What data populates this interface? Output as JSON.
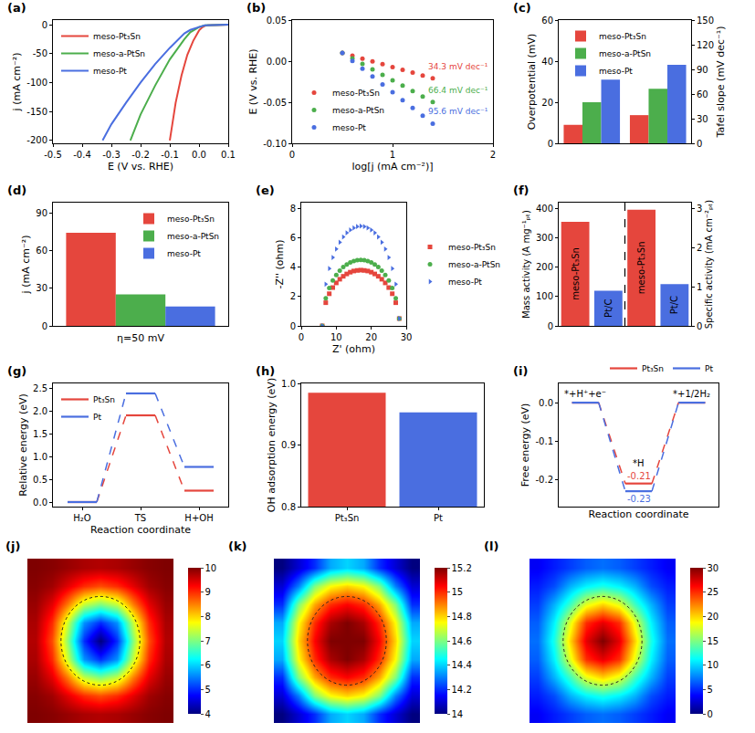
{
  "chart_data": [
    {
      "label": "(a)",
      "type": "line",
      "x_label": "E (V vs. RHE)",
      "y_label": "j (mA cm⁻²)",
      "xlim": [
        -0.5,
        0.1
      ],
      "xticks": [
        -0.5,
        -0.4,
        -0.3,
        -0.2,
        -0.1,
        {
          "value": 0,
          "label": "0.0"
        },
        0.1
      ],
      "ylim": [
        -205,
        8
      ],
      "yticks": [
        -200,
        -150,
        -100,
        -50,
        0
      ],
      "legend": "upper left",
      "series": [
        {
          "name": "meso-Pt₃Sn",
          "color": "#e5463d",
          "x": [
            0.1,
            0.05,
            0.03,
            0.02,
            0.01,
            0,
            -0.02,
            -0.04,
            -0.06,
            -0.08,
            -0.09,
            -0.1
          ],
          "values": [
            0,
            -0.3,
            -1,
            -2,
            -5,
            -10,
            -28,
            -52,
            -88,
            -135,
            -165,
            -200
          ]
        },
        {
          "name": "meso-a-PtSn",
          "color": "#4cae4c",
          "x": [
            0.1,
            0.05,
            0.02,
            0,
            -0.03,
            -0.05,
            -0.08,
            -0.1,
            -0.15,
            -0.2,
            -0.235
          ],
          "values": [
            0,
            -0.2,
            -1,
            -4,
            -13,
            -25,
            -45,
            -60,
            -105,
            -155,
            -200
          ]
        },
        {
          "name": "meso-Pt",
          "color": "#4a6ee0",
          "x": [
            0.1,
            0.05,
            0.02,
            0,
            -0.03,
            -0.05,
            -0.1,
            -0.15,
            -0.2,
            -0.25,
            -0.3,
            -0.33
          ],
          "values": [
            0,
            -0.2,
            -1,
            -4,
            -9,
            -15,
            -40,
            -68,
            -100,
            -135,
            -172,
            -200
          ]
        }
      ]
    },
    {
      "label": "(b)",
      "type": "scatter",
      "x_label": "log[j (mA cm⁻²)]",
      "y_label": "E (V vs. RHE)",
      "xlim": [
        0,
        2
      ],
      "xticks": [
        0,
        1,
        2
      ],
      "ylim": [
        -0.1,
        0.05
      ],
      "yticks": [
        {
          "value": -0.1,
          "label": "-0.10"
        },
        -0.05,
        {
          "value": 0,
          "label": "0.00"
        },
        0.05
      ],
      "legend": "lower left",
      "series": [
        {
          "name": "meso-Pt₃Sn",
          "color": "#e5463d",
          "marker": "circle",
          "label": "34.3 mV dec⁻¹",
          "x": [
            0.5,
            0.6,
            0.7,
            0.8,
            0.9,
            1.0,
            1.1,
            1.2,
            1.3,
            1.4
          ],
          "values": [
            0.01,
            0.0066,
            0.0031,
            -0.0003,
            -0.0037,
            -0.0072,
            -0.0106,
            -0.014,
            -0.0174,
            -0.0209
          ]
        },
        {
          "name": "meso-a-PtSn",
          "color": "#4cae4c",
          "marker": "circle",
          "label": "66.4 mV dec⁻¹",
          "x": [
            0.5,
            0.6,
            0.7,
            0.8,
            0.9,
            1.0,
            1.1,
            1.2,
            1.3,
            1.4
          ],
          "values": [
            0.01,
            0.0034,
            -0.0033,
            -0.0099,
            -0.0166,
            -0.0232,
            -0.0298,
            -0.0365,
            -0.0431,
            -0.0498
          ]
        },
        {
          "name": "meso-Pt",
          "color": "#4a6ee0",
          "marker": "circle",
          "label": "95.6 mV dec⁻¹",
          "x": [
            0.5,
            0.6,
            0.7,
            0.8,
            0.9,
            1.0,
            1.1,
            1.2,
            1.3,
            1.4
          ],
          "values": [
            0.01,
            0.0004,
            -0.0091,
            -0.0187,
            -0.0282,
            -0.0378,
            -0.0474,
            -0.0569,
            -0.0665,
            -0.076
          ]
        }
      ]
    },
    {
      "label": "(c)",
      "type": "bar",
      "categories": [
        null,
        null
      ],
      "y_label": "Overpotential (mV)",
      "y2_label": "Tafel slope (mV dec⁻¹)",
      "ylim": [
        0,
        60
      ],
      "yticks": [
        0,
        20,
        40,
        60
      ],
      "y2lim": [
        0,
        150
      ],
      "y2ticks": [
        0,
        30,
        60,
        90,
        120,
        150
      ],
      "legend": "upper left",
      "series": [
        {
          "name": "meso-Pt₃Sn",
          "color": "#e5463d",
          "values": [
            9,
            null
          ]
        },
        {
          "name": "meso-a-PtSn",
          "color": "#4cae4c",
          "values": [
            20,
            null
          ]
        },
        {
          "name": "meso-Pt",
          "color": "#4a6ee0",
          "values": [
            31,
            null
          ]
        },
        {
          "name": "meso-Pt₃Sn",
          "color": "#e5463d",
          "axis": "y2",
          "values": [
            null,
            34.3
          ]
        },
        {
          "name": "meso-a-PtSn",
          "color": "#4cae4c",
          "axis": "y2",
          "values": [
            null,
            66.4
          ]
        },
        {
          "name": "meso-Pt",
          "color": "#4a6ee0",
          "axis": "y2",
          "values": [
            null,
            95.6
          ]
        }
      ]
    },
    {
      "label": "(d)",
      "type": "bar",
      "categories": [
        null
      ],
      "x_label": "η=50 mV",
      "y_label": "j (mA cm⁻²)",
      "ylim": [
        0,
        98
      ],
      "yticks": [
        0,
        30,
        60,
        90
      ],
      "legend": "upper right",
      "series": [
        {
          "name": "meso-Pt₃Sn",
          "color": "#e5463d",
          "values": [
            74
          ]
        },
        {
          "name": "meso-a-PtSn",
          "color": "#4cae4c",
          "values": [
            25
          ]
        },
        {
          "name": "meso-Pt",
          "color": "#4a6ee0",
          "values": [
            15.5
          ]
        }
      ]
    },
    {
      "label": "(e)",
      "type": "scatter",
      "x_label": "Z' (ohm)",
      "y_label": "-Z'' (ohm)",
      "xlim": [
        0,
        30
      ],
      "xticks": [
        0,
        10,
        20,
        30
      ],
      "ylim": [
        0,
        8.4
      ],
      "yticks": [
        0,
        2,
        4,
        6,
        8
      ],
      "legend": "right",
      "series": [
        {
          "name": "meso-Pt₃Sn",
          "color": "#e5463d",
          "marker": "square",
          "x": [
            6,
            7,
            8,
            9,
            10,
            11,
            12,
            13,
            14,
            15,
            16,
            17,
            18,
            19,
            20,
            21,
            22,
            23,
            24,
            25,
            26,
            27,
            28
          ],
          "values": [
            0,
            1.58,
            2.19,
            2.61,
            2.93,
            3.18,
            3.38,
            3.54,
            3.66,
            3.74,
            3.78,
            3.8,
            3.78,
            3.74,
            3.66,
            3.54,
            3.38,
            3.18,
            2.93,
            2.61,
            2.19,
            1.58,
            0.5
          ]
        },
        {
          "name": "meso-a-PtSn",
          "color": "#4cae4c",
          "marker": "circle",
          "x": [
            6,
            7,
            8,
            9,
            10,
            11,
            12,
            13,
            14,
            15,
            16,
            17,
            18,
            19,
            20,
            21,
            22,
            23,
            24,
            25,
            26,
            27,
            28
          ],
          "values": [
            0,
            1.88,
            2.59,
            3.09,
            3.47,
            3.77,
            4.01,
            4.19,
            4.33,
            4.42,
            4.48,
            4.5,
            4.48,
            4.42,
            4.33,
            4.19,
            4.01,
            3.77,
            3.47,
            3.09,
            2.59,
            1.88,
            0.5
          ]
        },
        {
          "name": "meso-Pt",
          "color": "#4a6ee0",
          "marker": "triangle-right",
          "x": [
            6,
            7,
            8,
            9,
            10,
            11,
            12,
            13,
            14,
            15,
            16,
            17,
            18,
            19,
            20,
            21,
            22,
            23,
            24,
            25,
            26,
            27,
            28
          ],
          "values": [
            0,
            2.84,
            3.91,
            4.66,
            5.24,
            5.7,
            6.06,
            6.34,
            6.54,
            6.68,
            6.77,
            6.8,
            6.77,
            6.68,
            6.54,
            6.34,
            6.06,
            5.7,
            5.24,
            4.66,
            3.91,
            2.84,
            0.5
          ]
        }
      ]
    },
    {
      "label": "(f)",
      "type": "bar",
      "categories": [
        "meso-Pt₃Sn",
        "Pt/C",
        "meso-Pt₃Sn",
        "Pt/C"
      ],
      "colors": [
        "#e5463d",
        "#4a6ee0",
        "#e5463d",
        "#4a6ee0"
      ],
      "tick_labels": "y",
      "y_label": "Mass activity (A mg⁻¹ₚₜ)",
      "y2_label": "Specific activity (mA cm⁻²ₚₜ)",
      "ylim": [
        0,
        420
      ],
      "yticks": [
        0,
        100,
        200,
        300,
        400
      ],
      "y2lim": [
        0,
        3.15
      ],
      "y2ticks": [
        0,
        1,
        2,
        3
      ],
      "series": [
        {
          "values": [
            355,
            120,
            null,
            null
          ]
        },
        {
          "axis": "y2",
          "values": [
            null,
            null,
            2.97,
            1.07
          ]
        }
      ]
    },
    {
      "label": "(g)",
      "type": "energy",
      "categories": [
        "H₂O",
        "TS",
        "H+OH"
      ],
      "x_label": "Reaction coordinate",
      "y_label": "Relative energy (eV)",
      "ylim": [
        -0.1,
        2.6
      ],
      "yticks": [
        {
          "value": 0,
          "label": "0.0"
        },
        0.5,
        {
          "value": 1,
          "label": "1.0"
        },
        1.5,
        {
          "value": 2,
          "label": "2.0"
        },
        2.5
      ],
      "legend": "upper left",
      "series": [
        {
          "name": "Pt₃Sn",
          "color": "#e5463d",
          "values": [
            0,
            1.9,
            0.25
          ]
        },
        {
          "name": "Pt",
          "color": "#4a6ee0",
          "values": [
            0,
            2.38,
            0.77
          ]
        }
      ]
    },
    {
      "label": "(h)",
      "type": "bar",
      "categories": [
        "Pt₃Sn",
        "Pt"
      ],
      "colors": [
        "#e5463d",
        "#4a6ee0"
      ],
      "y_label": "OH adsorption energy (eV)",
      "ylim": [
        0.8,
        1.0
      ],
      "yticks": [
        0.8,
        0.9,
        {
          "value": 1,
          "label": "1.0"
        }
      ],
      "values": [
        0.985,
        0.953
      ]
    },
    {
      "label": "(i)",
      "type": "energy",
      "categories": [
        "*+H⁺+e⁻",
        "*H",
        "*+1/2H₂"
      ],
      "tick_labels": "y",
      "x_label": "Reaction coordinate",
      "y_label": "Free energy (eV)",
      "ylim": [
        -0.27,
        0.05
      ],
      "yticks": [
        -0.2,
        -0.1,
        {
          "value": 0,
          "label": "0.0"
        }
      ],
      "legend": "top",
      "data_labels": true,
      "series": [
        {
          "name": "Pt₃Sn",
          "color": "#e5463d",
          "values": [
            0,
            -0.21,
            0
          ],
          "value_labels": [
            null,
            "-0.21",
            null
          ]
        },
        {
          "name": "Pt",
          "color": "#4a6ee0",
          "values": [
            0,
            -0.23,
            0
          ],
          "value_labels": [
            null,
            "-0.23",
            null
          ]
        }
      ]
    },
    {
      "label": "(j)",
      "type": "heatmap",
      "tick_labels": false,
      "colorbar": {
        "range": [
          4,
          10
        ],
        "ticks": [
          4,
          5,
          6,
          7,
          8,
          9,
          10
        ]
      },
      "cells": [
        [
          10.0,
          9.95,
          9.85,
          9.75,
          9.7,
          9.75,
          9.85,
          9.95,
          10.0
        ],
        [
          9.95,
          9.8,
          9.4,
          9.0,
          8.8,
          9.0,
          9.4,
          9.8,
          9.95
        ],
        [
          9.85,
          9.4,
          8.5,
          7.4,
          7.0,
          7.4,
          8.5,
          9.4,
          9.85
        ],
        [
          9.75,
          9.0,
          7.4,
          5.6,
          5.0,
          5.6,
          7.4,
          9.0,
          9.75
        ],
        [
          9.7,
          8.8,
          7.0,
          5.0,
          4.0,
          5.0,
          7.0,
          8.8,
          9.7
        ],
        [
          9.75,
          9.0,
          7.4,
          5.6,
          5.0,
          5.6,
          7.4,
          9.0,
          9.75
        ],
        [
          9.85,
          9.4,
          8.5,
          7.4,
          7.0,
          7.4,
          8.5,
          9.4,
          9.85
        ],
        [
          9.95,
          9.8,
          9.4,
          9.0,
          8.8,
          9.0,
          9.4,
          9.8,
          9.95
        ],
        [
          10.0,
          9.95,
          9.85,
          9.75,
          9.7,
          9.75,
          9.85,
          9.95,
          10.0
        ]
      ]
    },
    {
      "label": "(k)",
      "type": "heatmap",
      "tick_labels": false,
      "colorbar": {
        "range": [
          14,
          15.2
        ],
        "ticks": [
          14,
          14.2,
          14.4,
          14.6,
          14.8,
          15,
          15.2
        ]
      },
      "cells": [
        [
          14.0,
          14.1,
          14.2,
          14.35,
          14.4,
          14.35,
          14.2,
          14.1,
          14.0
        ],
        [
          14.1,
          14.3,
          14.6,
          14.75,
          14.8,
          14.75,
          14.6,
          14.3,
          14.1
        ],
        [
          14.2,
          14.6,
          14.85,
          15.0,
          15.05,
          15.0,
          14.85,
          14.6,
          14.2
        ],
        [
          14.35,
          14.75,
          15.0,
          15.15,
          15.2,
          15.15,
          15.0,
          14.75,
          14.35
        ],
        [
          14.4,
          14.8,
          15.05,
          15.2,
          15.2,
          15.2,
          15.05,
          14.8,
          14.4
        ],
        [
          14.35,
          14.75,
          15.0,
          15.15,
          15.2,
          15.15,
          15.0,
          14.75,
          14.35
        ],
        [
          14.2,
          14.6,
          14.85,
          15.0,
          15.05,
          15.0,
          14.85,
          14.6,
          14.2
        ],
        [
          14.1,
          14.3,
          14.6,
          14.75,
          14.8,
          14.75,
          14.6,
          14.3,
          14.1
        ],
        [
          14.0,
          14.1,
          14.2,
          14.35,
          14.4,
          14.35,
          14.2,
          14.1,
          14.0
        ]
      ]
    },
    {
      "label": "(l)",
      "type": "heatmap",
      "tick_labels": false,
      "colorbar": {
        "range": [
          0,
          30
        ],
        "ticks": [
          0,
          5,
          10,
          15,
          20,
          25,
          30
        ]
      },
      "cells": [
        [
          3.5,
          4.5,
          5.5,
          6.5,
          7,
          6.5,
          5.5,
          4.5,
          3.5
        ],
        [
          4.5,
          6,
          9,
          11,
          12,
          11,
          9,
          6,
          4.5
        ],
        [
          5.5,
          9,
          13,
          18,
          20,
          18,
          13,
          9,
          5.5
        ],
        [
          6.5,
          11,
          18,
          25,
          27,
          25,
          18,
          11,
          6.5
        ],
        [
          7,
          12,
          20,
          27,
          30,
          27,
          20,
          12,
          7
        ],
        [
          6.5,
          11,
          18,
          25,
          27,
          25,
          18,
          11,
          6.5
        ],
        [
          5.5,
          9,
          13,
          18,
          20,
          18,
          13,
          9,
          5.5
        ],
        [
          4.5,
          6,
          9,
          11,
          12,
          11,
          9,
          6,
          4.5
        ],
        [
          3.5,
          4.5,
          5.5,
          6.5,
          7,
          6.5,
          5.5,
          4.5,
          3.5
        ]
      ]
    }
  ]
}
